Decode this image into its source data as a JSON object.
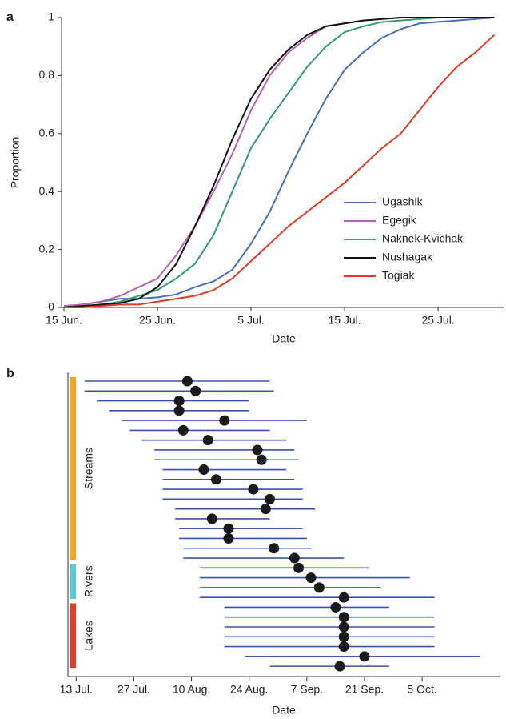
{
  "chart_data": [
    {
      "type": "line",
      "panel": "a",
      "y_label": "Proportion",
      "x_label": "Date",
      "x": [
        "15 Jun.",
        "17 Jun.",
        "19 Jun.",
        "21 Jun.",
        "23 Jun.",
        "25 Jun.",
        "27 Jun.",
        "29 Jun.",
        "1 Jul.",
        "3 Jul.",
        "5 Jul.",
        "7 Jul.",
        "9 Jul.",
        "11 Jul.",
        "13 Jul.",
        "15 Jul.",
        "17 Jul.",
        "19 Jul.",
        "21 Jul.",
        "23 Jul.",
        "25 Jul.",
        "27 Jul.",
        "29 Jul.",
        "31 Jul."
      ],
      "xlim": [
        "15 Jun.",
        "1 Aug."
      ],
      "xticks": [
        "15 Jun.",
        "25 Jun.",
        "5 Jul.",
        "15 Jul.",
        "25 Jul."
      ],
      "ylim": [
        0,
        1
      ],
      "yticks": [
        0,
        0.2,
        0.4,
        0.6,
        0.8,
        1
      ],
      "legend": "lower-right",
      "series": [
        {
          "name": "Ugashik",
          "color": "#4a6fb5",
          "values": [
            0.005,
            0.01,
            0.02,
            0.03,
            0.03,
            0.035,
            0.045,
            0.07,
            0.09,
            0.13,
            0.22,
            0.33,
            0.47,
            0.6,
            0.72,
            0.82,
            0.88,
            0.93,
            0.96,
            0.98,
            0.985,
            0.99,
            0.995,
            1
          ]
        },
        {
          "name": "Egegik",
          "color": "#b85fb0",
          "values": [
            0.005,
            0.01,
            0.02,
            0.04,
            0.07,
            0.1,
            0.18,
            0.28,
            0.4,
            0.53,
            0.68,
            0.8,
            0.88,
            0.93,
            0.97,
            0.98,
            0.99,
            0.995,
            1,
            1,
            1,
            1,
            1,
            1
          ]
        },
        {
          "name": "Naknek-Kvichak",
          "color": "#2e9e6f",
          "values": [
            0,
            0.005,
            0.01,
            0.02,
            0.04,
            0.06,
            0.1,
            0.15,
            0.25,
            0.4,
            0.55,
            0.65,
            0.74,
            0.83,
            0.9,
            0.95,
            0.97,
            0.985,
            0.99,
            0.995,
            1,
            1,
            1,
            1
          ]
        },
        {
          "name": "Nushagak",
          "color": "#111111",
          "values": [
            0,
            0.005,
            0.01,
            0.015,
            0.03,
            0.07,
            0.15,
            0.28,
            0.42,
            0.58,
            0.72,
            0.82,
            0.89,
            0.94,
            0.97,
            0.98,
            0.99,
            0.995,
            1,
            1,
            1,
            1,
            1,
            1
          ]
        },
        {
          "name": "Togiak",
          "color": "#e03b24",
          "values": [
            0,
            0,
            0.005,
            0.01,
            0.01,
            0.02,
            0.03,
            0.04,
            0.06,
            0.1,
            0.16,
            0.22,
            0.28,
            0.33,
            0.38,
            0.43,
            0.49,
            0.55,
            0.6,
            0.68,
            0.76,
            0.83,
            0.88,
            0.94
          ]
        }
      ]
    },
    {
      "type": "interval",
      "panel": "b",
      "x_label": "Date",
      "xlim": [
        "11 Jul.",
        "24 Oct."
      ],
      "xticks": [
        "13 Jul.",
        "27 Jul.",
        "10 Aug.",
        "24 Aug.",
        "7 Sep.",
        "21 Sep.",
        "5 Oct."
      ],
      "line_color": "#3c50b2",
      "dot_color": "#1a1a1a",
      "groups": [
        {
          "label": "Streams",
          "color": "#f5a623",
          "intervals": [
            {
              "start": "15 Jul.",
              "end": "29 Aug.",
              "median": "9 Aug."
            },
            {
              "start": "15 Jul.",
              "end": "30 Aug.",
              "median": "11 Aug."
            },
            {
              "start": "18 Jul.",
              "end": "24 Aug.",
              "median": "7 Aug."
            },
            {
              "start": "21 Jul.",
              "end": "24 Aug.",
              "median": "7 Aug."
            },
            {
              "start": "24 Jul.",
              "end": "7 Sep.",
              "median": "18 Aug."
            },
            {
              "start": "26 Jul.",
              "end": "29 Aug.",
              "median": "8 Aug."
            },
            {
              "start": "29 Jul.",
              "end": "2 Sep.",
              "median": "14 Aug."
            },
            {
              "start": "1 Aug.",
              "end": "4 Sep.",
              "median": "26 Aug."
            },
            {
              "start": "1 Aug.",
              "end": "5 Sep.",
              "median": "27 Aug."
            },
            {
              "start": "3 Aug.",
              "end": "2 Sep.",
              "median": "13 Aug."
            },
            {
              "start": "3 Aug.",
              "end": "4 Sep.",
              "median": "16 Aug."
            },
            {
              "start": "3 Aug.",
              "end": "6 Sep.",
              "median": "25 Aug."
            },
            {
              "start": "3 Aug.",
              "end": "6 Sep.",
              "median": "29 Aug."
            },
            {
              "start": "6 Aug.",
              "end": "9 Sep.",
              "median": "28 Aug."
            },
            {
              "start": "6 Aug.",
              "end": "29 Aug.",
              "median": "15 Aug."
            },
            {
              "start": "7 Aug.",
              "end": "6 Sep.",
              "median": "19 Aug."
            },
            {
              "start": "7 Aug.",
              "end": "7 Sep.",
              "median": "19 Aug."
            },
            {
              "start": "8 Aug.",
              "end": "8 Sep.",
              "median": "30 Aug."
            },
            {
              "start": "8 Aug.",
              "end": "16 Sep.",
              "median": "4 Sep."
            }
          ]
        },
        {
          "label": "Rivers",
          "color": "#5bc8d8",
          "intervals": [
            {
              "start": "12 Aug.",
              "end": "22 Sep.",
              "median": "5 Sep."
            },
            {
              "start": "12 Aug.",
              "end": "2 Oct.",
              "median": "8 Sep."
            },
            {
              "start": "12 Aug.",
              "end": "25 Sep.",
              "median": "10 Sep."
            },
            {
              "start": "12 Aug.",
              "end": "8 Oct.",
              "median": "16 Sep."
            }
          ]
        },
        {
          "label": "Lakes",
          "color": "#e8392b",
          "intervals": [
            {
              "start": "18 Aug.",
              "end": "27 Sep.",
              "median": "14 Sep."
            },
            {
              "start": "18 Aug.",
              "end": "8 Oct.",
              "median": "16 Sep."
            },
            {
              "start": "18 Aug.",
              "end": "8 Oct.",
              "median": "16 Sep."
            },
            {
              "start": "18 Aug.",
              "end": "8 Oct.",
              "median": "16 Sep."
            },
            {
              "start": "18 Aug.",
              "end": "8 Oct.",
              "median": "16 Sep."
            },
            {
              "start": "23 Aug.",
              "end": "19 Oct.",
              "median": "21 Sep."
            },
            {
              "start": "29 Aug.",
              "end": "27 Sep.",
              "median": "15 Sep."
            }
          ]
        }
      ]
    }
  ]
}
